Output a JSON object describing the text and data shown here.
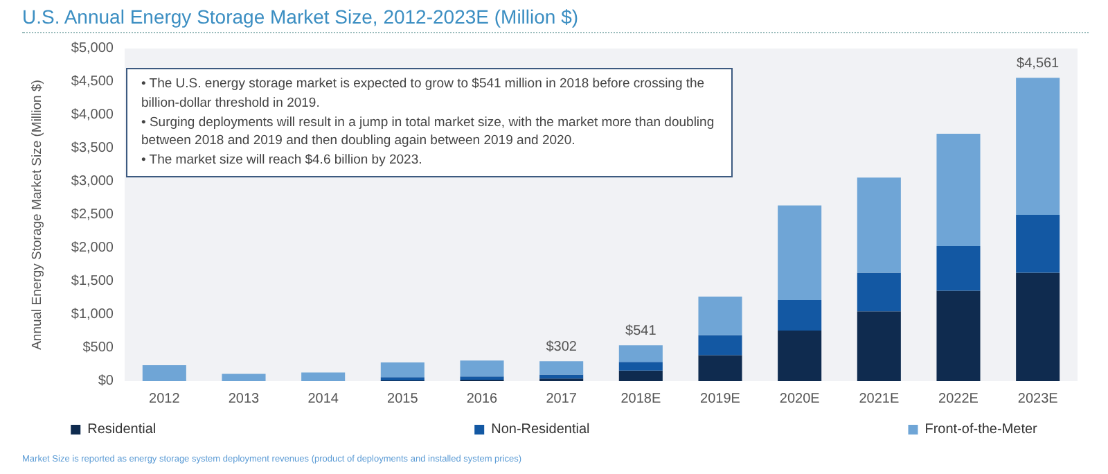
{
  "chart_data": {
    "type": "bar",
    "title": "U.S. Annual Energy Storage Market Size, 2012-2023E (Million $)",
    "ylabel": "Annual Energy Storage Market Size (Million $)",
    "categories": [
      "2012",
      "2013",
      "2014",
      "2015",
      "2016",
      "2017",
      "2018E",
      "2019E",
      "2020E",
      "2021E",
      "2022E",
      "2023E"
    ],
    "stacked": true,
    "series": [
      {
        "name": "Residential",
        "color": "#0f2b4f",
        "values": [
          0,
          0,
          0,
          10,
          20,
          40,
          160,
          390,
          760,
          1050,
          1360,
          1630
        ]
      },
      {
        "name": "Non-Residential",
        "color": "#1358a3",
        "values": [
          0,
          0,
          0,
          50,
          50,
          60,
          130,
          300,
          460,
          580,
          670,
          870
        ]
      },
      {
        "name": "Front-of-the-Meter",
        "color": "#6fa5d6",
        "values": [
          240,
          110,
          130,
          220,
          240,
          200,
          250,
          580,
          1420,
          1430,
          1690,
          2060
        ]
      }
    ],
    "totals": [
      null,
      null,
      null,
      null,
      null,
      "$302",
      "$541",
      null,
      null,
      null,
      null,
      "$4,561"
    ],
    "ylim": [
      0,
      5000
    ],
    "yticks": [
      {
        "value": 0,
        "label": "$0"
      },
      {
        "value": 500,
        "label": "$500"
      },
      {
        "value": 1000,
        "label": "$1,000"
      },
      {
        "value": 1500,
        "label": "$1,500"
      },
      {
        "value": 2000,
        "label": "$2,000"
      },
      {
        "value": 2500,
        "label": "$2,500"
      },
      {
        "value": 3000,
        "label": "$3,000"
      },
      {
        "value": 3500,
        "label": "$3,500"
      },
      {
        "value": 4000,
        "label": "$4,000"
      },
      {
        "value": 4500,
        "label": "$4,500"
      },
      {
        "value": 5000,
        "label": "$5,000"
      }
    ],
    "grid": false,
    "legend": "bottom",
    "annotations": [
      "• The U.S. energy storage market is expected to grow to $541 million in 2018 before crossing the billion-dollar threshold in 2019.",
      "• Surging deployments will result in a jump in total market size, with the market more than doubling between 2018 and 2019 and then doubling again between 2019 and 2020.",
      "• The market size will reach $4.6 billion by 2023.",
      "Market Size is reported as energy storage system deployment revenues (product of deployments and installed system prices)"
    ]
  }
}
